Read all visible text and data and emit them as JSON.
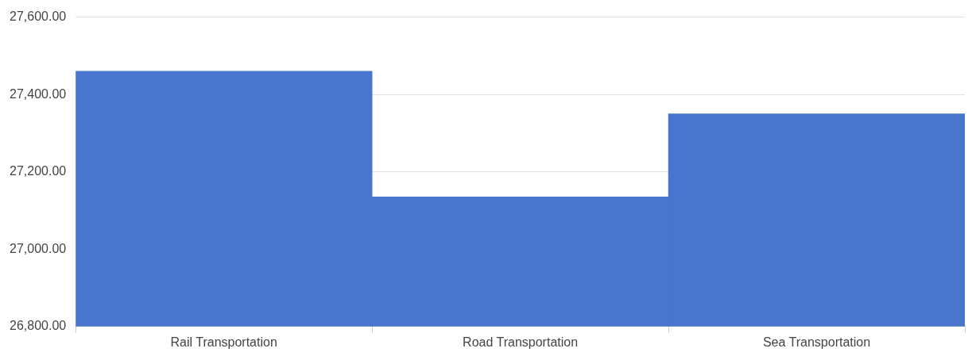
{
  "chart_data": {
    "type": "bar",
    "categories": [
      "Rail Transportation",
      "Road Transportation",
      "Sea Transportation"
    ],
    "values": [
      27460,
      27135,
      27350
    ],
    "color": "#4876cc",
    "ylim": [
      26800,
      27600
    ],
    "yticks": [
      {
        "value": 26800,
        "label": "26,800.00"
      },
      {
        "value": 27000,
        "label": "27,000.00"
      },
      {
        "value": 27200,
        "label": "27,200.00"
      },
      {
        "value": 27400,
        "label": "27,400.00"
      },
      {
        "value": 27600,
        "label": "27,600.00"
      }
    ],
    "grid": "y",
    "legend": false
  }
}
